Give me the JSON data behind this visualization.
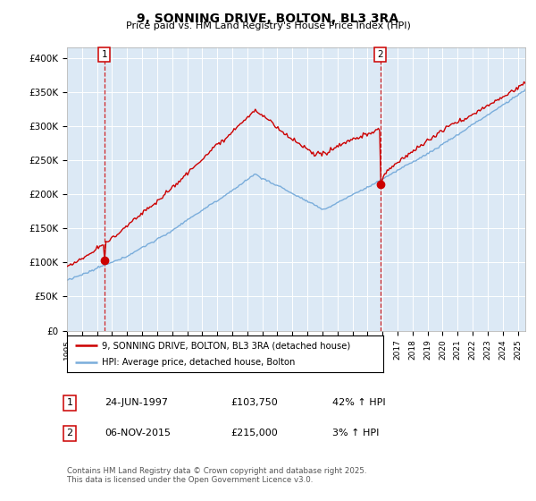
{
  "title": "9, SONNING DRIVE, BOLTON, BL3 3RA",
  "subtitle": "Price paid vs. HM Land Registry's House Price Index (HPI)",
  "ylabel_ticks": [
    "£0",
    "£50K",
    "£100K",
    "£150K",
    "£200K",
    "£250K",
    "£300K",
    "£350K",
    "£400K"
  ],
  "ytick_values": [
    0,
    50000,
    100000,
    150000,
    200000,
    250000,
    300000,
    350000,
    400000
  ],
  "ylim": [
    0,
    415000
  ],
  "xlim_start": 1995.0,
  "xlim_end": 2025.5,
  "sale1_date": 1997.48,
  "sale1_price": 103750,
  "sale1_label": "1",
  "sale2_date": 2015.85,
  "sale2_price": 215000,
  "sale2_label": "2",
  "hpi_color": "#7aaddb",
  "price_color": "#cc0000",
  "plot_bg": "#dce9f5",
  "legend_line1": "9, SONNING DRIVE, BOLTON, BL3 3RA (detached house)",
  "legend_line2": "HPI: Average price, detached house, Bolton",
  "table_row1": [
    "1",
    "24-JUN-1997",
    "£103,750",
    "42% ↑ HPI"
  ],
  "table_row2": [
    "2",
    "06-NOV-2015",
    "£215,000",
    "3% ↑ HPI"
  ],
  "footnote": "Contains HM Land Registry data © Crown copyright and database right 2025.\nThis data is licensed under the Open Government Licence v3.0."
}
